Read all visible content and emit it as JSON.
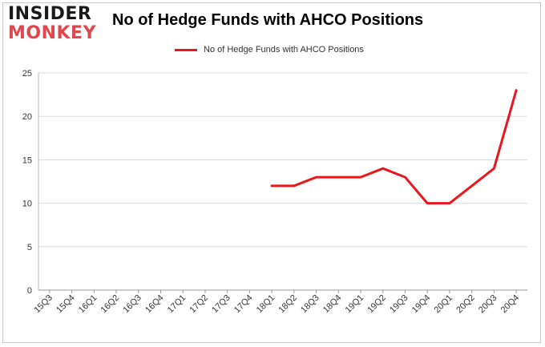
{
  "logo": {
    "line1": "INSIDER",
    "line2": "MONKEY"
  },
  "chart_data": {
    "type": "line",
    "title": "No of Hedge Funds with AHCO Positions",
    "categories": [
      "15Q3",
      "15Q4",
      "16Q1",
      "16Q2",
      "16Q3",
      "16Q4",
      "17Q1",
      "17Q2",
      "17Q3",
      "17Q4",
      "18Q1",
      "18Q2",
      "18Q3",
      "18Q4",
      "19Q1",
      "19Q2",
      "19Q3",
      "19Q4",
      "20Q1",
      "20Q2",
      "20Q3",
      "20Q4"
    ],
    "series": [
      {
        "name": "No of Hedge Funds with AHCO Positions",
        "values": [
          null,
          null,
          null,
          null,
          null,
          null,
          null,
          null,
          null,
          null,
          12,
          12,
          13,
          13,
          13,
          14,
          13,
          10,
          10,
          12,
          14,
          23
        ],
        "color": "#e8161d"
      }
    ],
    "yticks": [
      0,
      5,
      10,
      15,
      20,
      25
    ],
    "ylim": [
      0,
      25
    ],
    "grid": true,
    "legend": "top-center"
  }
}
